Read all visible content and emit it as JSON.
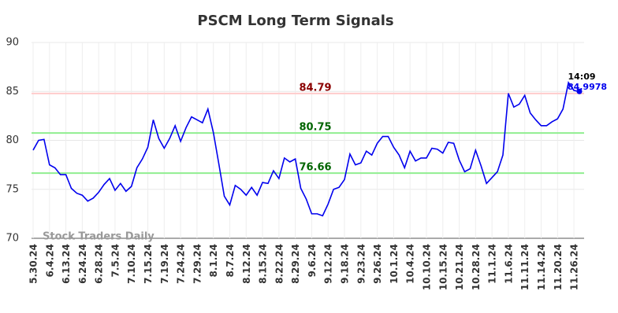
{
  "chart_data": {
    "type": "line",
    "title": "PSCM Long Term Signals",
    "categories": [
      "5.30.24",
      null,
      null,
      "6.4.24",
      null,
      null,
      "6.13.24",
      null,
      null,
      "6.24.24",
      null,
      null,
      "6.28.24",
      null,
      null,
      "7.5.24",
      null,
      null,
      "7.10.24",
      null,
      null,
      "7.15.24",
      null,
      null,
      "7.19.24",
      null,
      null,
      "7.24.24",
      null,
      null,
      "7.29.24",
      null,
      null,
      "8.1.24",
      null,
      null,
      "8.7.24",
      null,
      null,
      "8.12.24",
      null,
      null,
      "8.15.24",
      null,
      null,
      "8.22.24",
      null,
      null,
      "8.29.24",
      null,
      null,
      "9.6.24",
      null,
      null,
      "9.12.24",
      null,
      null,
      "9.18.24",
      null,
      null,
      "9.23.24",
      null,
      null,
      "9.26.24",
      null,
      null,
      "10.1.24",
      null,
      null,
      "10.4.24",
      null,
      null,
      "10.10.24",
      null,
      null,
      "10.15.24",
      null,
      null,
      "10.21.24",
      null,
      null,
      "10.28.24",
      null,
      null,
      "11.1.24",
      null,
      null,
      "11.6.24",
      null,
      null,
      "11.11.24",
      null,
      null,
      "11.14.24",
      null,
      null,
      "11.20.24",
      null,
      null,
      "11.26.24",
      null
    ],
    "series": [
      {
        "name": "PSCM",
        "color": "#0000ee",
        "values": [
          79.0,
          80.0,
          80.1,
          77.5,
          77.2,
          76.5,
          76.5,
          75.1,
          74.6,
          74.4,
          73.8,
          74.1,
          74.7,
          75.5,
          76.1,
          74.9,
          75.6,
          74.8,
          75.3,
          77.2,
          78.1,
          79.3,
          82.1,
          80.2,
          79.2,
          80.2,
          81.5,
          79.9,
          81.3,
          82.4,
          82.1,
          81.8,
          83.2,
          80.8,
          77.6,
          74.3,
          73.4,
          75.4,
          75.0,
          74.4,
          75.2,
          74.4,
          75.7,
          75.6,
          76.9,
          76.1,
          78.2,
          77.8,
          78.1,
          75.1,
          74.0,
          72.5,
          72.5,
          72.3,
          73.5,
          75.0,
          75.2,
          76.0,
          78.6,
          77.5,
          77.7,
          78.9,
          78.5,
          79.7,
          80.4,
          80.4,
          79.3,
          78.5,
          77.2,
          78.9,
          77.9,
          78.2,
          78.2,
          79.2,
          79.1,
          78.7,
          79.8,
          79.7,
          78.0,
          76.8,
          77.1,
          79.0,
          77.4,
          75.6,
          76.2,
          76.8,
          78.5,
          84.8,
          83.4,
          83.7,
          84.6,
          82.8,
          82.1,
          81.5,
          81.5,
          81.9,
          82.2,
          83.2,
          85.9,
          85.1,
          84.9978
        ]
      }
    ],
    "ylim": [
      70,
      90
    ],
    "yticks": [
      70,
      75,
      80,
      85,
      90
    ],
    "grid": true,
    "hlines": [
      {
        "value": 84.79,
        "color": "#ffcccc",
        "text_color": "#8b0000"
      },
      {
        "value": 80.75,
        "color": "#90ee90",
        "text_color": "#006400"
      },
      {
        "value": 76.66,
        "color": "#90ee90",
        "text_color": "#006400"
      }
    ],
    "time_label": "14:09",
    "watermark": "Stock Traders Daily"
  }
}
